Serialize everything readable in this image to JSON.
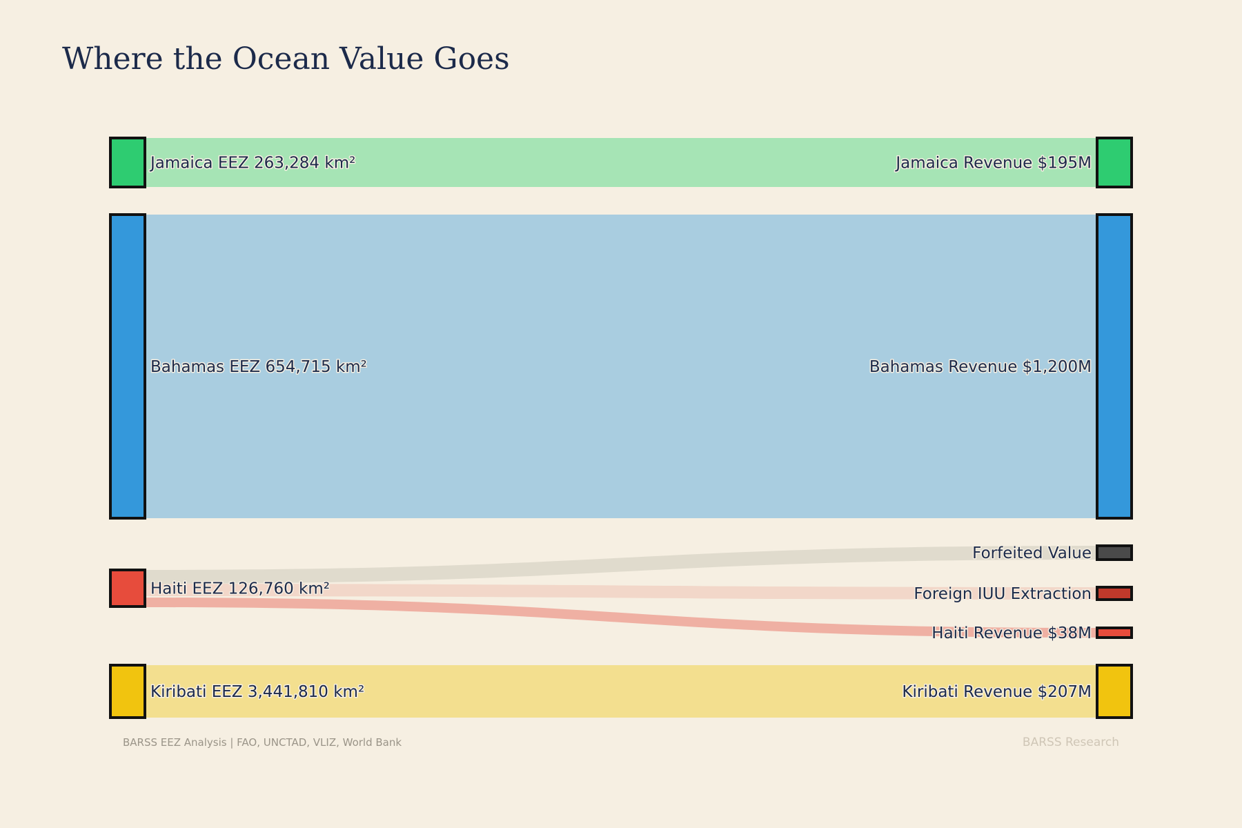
{
  "title": "Where the Ocean Value Goes",
  "footer": {
    "source": "BARSS EEZ Analysis | FAO, UNCTAD, VLIZ, World Bank",
    "brand": "BARSS Research"
  },
  "nodes": {
    "jamaica_eez": {
      "label": "Jamaica EEZ 263,284 km²",
      "color": "#2ecc71"
    },
    "bahamas_eez": {
      "label": "Bahamas EEZ 654,715 km²",
      "color": "#3498db"
    },
    "haiti_eez": {
      "label": "Haiti EEZ 126,760 km²",
      "color": "#e74c3c"
    },
    "kiribati_eez": {
      "label": "Kiribati EEZ 3,441,810 km²",
      "color": "#f1c40f"
    },
    "jamaica_rev": {
      "label": "Jamaica Revenue $195M",
      "color": "#2ecc71"
    },
    "bahamas_rev": {
      "label": "Bahamas Revenue $1,200M",
      "color": "#3498db"
    },
    "forfeited": {
      "label": "Forfeited Value",
      "color": "#4a4a4a"
    },
    "foreign_iuu": {
      "label": "Foreign IUU Extraction",
      "color": "#c0392b"
    },
    "haiti_rev": {
      "label": "Haiti Revenue $38M",
      "color": "#e74c3c"
    },
    "kiribati_rev": {
      "label": "Kiribati Revenue $207M",
      "color": "#f1c40f"
    }
  },
  "links": [
    {
      "source": "jamaica_eez",
      "target": "jamaica_rev",
      "color": "#a6e4b5"
    },
    {
      "source": "bahamas_eez",
      "target": "bahamas_rev",
      "color": "#a9cde0"
    },
    {
      "source": "haiti_eez",
      "target": "forfeited",
      "color": "#e0dbcd"
    },
    {
      "source": "haiti_eez",
      "target": "foreign_iuu",
      "color": "#f2d7c9"
    },
    {
      "source": "haiti_eez",
      "target": "haiti_rev",
      "color": "#efb0a3"
    },
    {
      "source": "kiribati_eez",
      "target": "kiribati_rev",
      "color": "#f3df8f"
    }
  ]
}
